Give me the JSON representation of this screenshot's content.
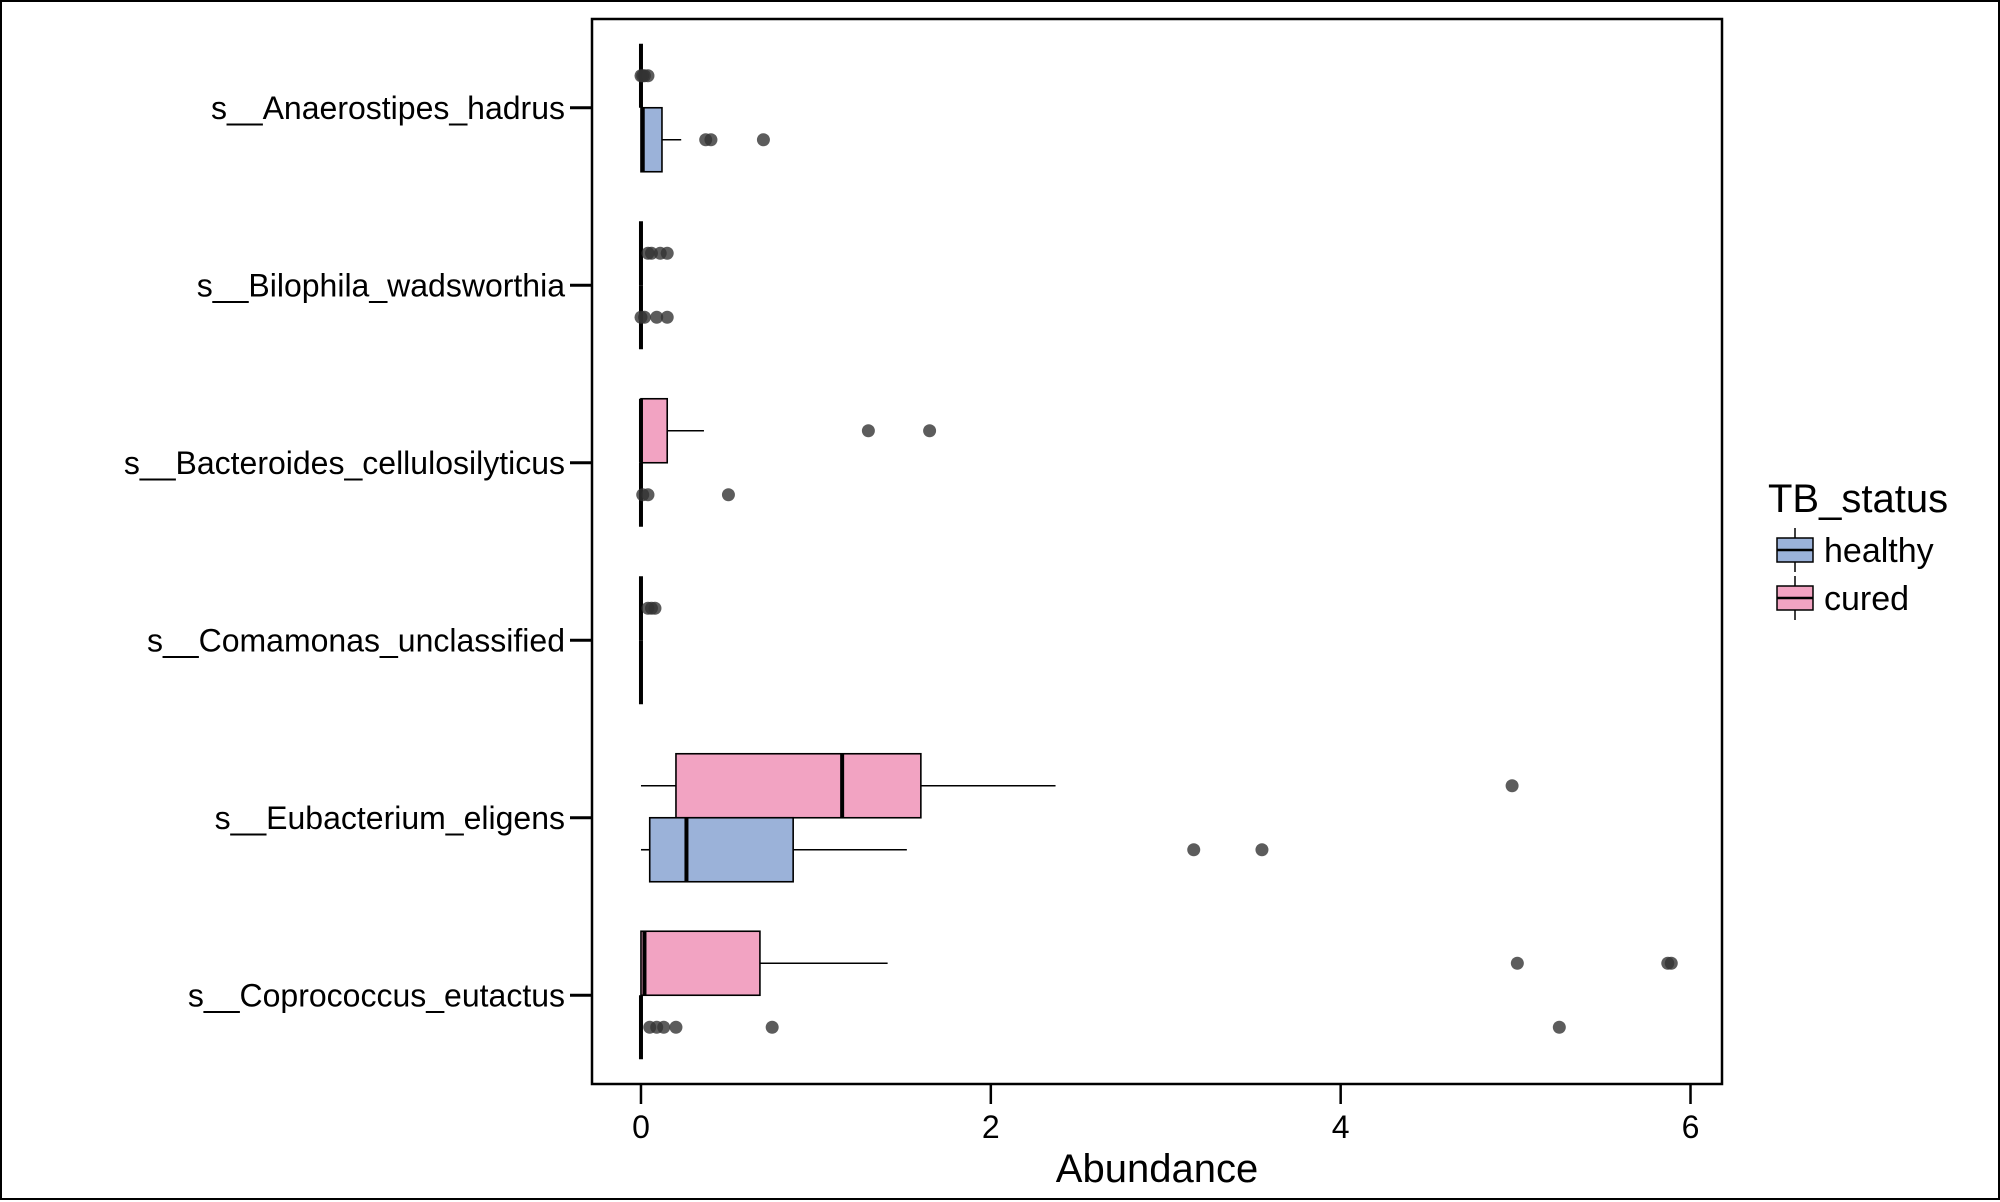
{
  "chart_data": {
    "type": "boxplot",
    "orientation": "horizontal",
    "title": "",
    "xlabel": "Abundance",
    "ylabel": "",
    "xlim": [
      -0.28,
      6.18
    ],
    "x_ticks": [
      0,
      2,
      4,
      6
    ],
    "grid": false,
    "legend": {
      "title": "TB_status",
      "position": "right",
      "entries": [
        {
          "name": "healthy",
          "color": "#9bb2d9"
        },
        {
          "name": "cured",
          "color": "#f2a3c2"
        }
      ]
    },
    "categories": [
      "s__Anaerostipes_hadrus",
      "s__Bilophila_wadsworthia",
      "s__Bacteroides_cellulosilyticus",
      "s__Comamonas_unclassified",
      "s__Eubacterium_eligens",
      "s__Coprococcus_eutactus"
    ],
    "series": [
      {
        "name": "cured",
        "color": "#f2a3c2",
        "boxes": [
          {
            "category": "s__Anaerostipes_hadrus",
            "whisker_low": 0,
            "q1": 0,
            "median": 0,
            "q3": 0,
            "whisker_high": 0,
            "outliers": [
              0,
              0.01,
              0.02,
              0.04
            ]
          },
          {
            "category": "s__Bilophila_wadsworthia",
            "whisker_low": 0,
            "q1": 0,
            "median": 0,
            "q3": 0,
            "whisker_high": 0,
            "outliers": [
              0.04,
              0.06,
              0.11,
              0.15
            ]
          },
          {
            "category": "s__Bacteroides_cellulosilyticus",
            "whisker_low": 0,
            "q1": 0,
            "median": 0,
            "q3": 0.15,
            "whisker_high": 0.36,
            "outliers": [
              1.3,
              1.65
            ]
          },
          {
            "category": "s__Comamonas_unclassified",
            "whisker_low": 0,
            "q1": 0,
            "median": 0,
            "q3": 0,
            "whisker_high": 0,
            "outliers": [
              0.04,
              0.06,
              0.08
            ]
          },
          {
            "category": "s__Eubacterium_eligens",
            "whisker_low": 0,
            "q1": 0.2,
            "median": 1.15,
            "q3": 1.6,
            "whisker_high": 2.37,
            "outliers": [
              4.98
            ]
          },
          {
            "category": "s__Coprococcus_eutactus",
            "whisker_low": 0,
            "q1": 0,
            "median": 0.02,
            "q3": 0.68,
            "whisker_high": 1.41,
            "outliers": [
              5.01,
              5.87,
              5.89
            ]
          }
        ]
      },
      {
        "name": "healthy",
        "color": "#9bb2d9",
        "boxes": [
          {
            "category": "s__Anaerostipes_hadrus",
            "whisker_low": 0,
            "q1": 0,
            "median": 0.01,
            "q3": 0.12,
            "whisker_high": 0.23,
            "outliers": [
              0.37,
              0.4,
              0.7
            ]
          },
          {
            "category": "s__Bilophila_wadsworthia",
            "whisker_low": 0,
            "q1": 0,
            "median": 0,
            "q3": 0,
            "whisker_high": 0,
            "outliers": [
              0,
              0.02,
              0.09,
              0.15
            ]
          },
          {
            "category": "s__Bacteroides_cellulosilyticus",
            "whisker_low": 0,
            "q1": 0,
            "median": 0,
            "q3": 0,
            "whisker_high": 0,
            "outliers": [
              0.01,
              0.04,
              0.5
            ]
          },
          {
            "category": "s__Comamonas_unclassified",
            "whisker_low": 0,
            "q1": 0,
            "median": 0,
            "q3": 0,
            "whisker_high": 0,
            "outliers": []
          },
          {
            "category": "s__Eubacterium_eligens",
            "whisker_low": 0,
            "q1": 0.05,
            "median": 0.26,
            "q3": 0.87,
            "whisker_high": 1.52,
            "outliers": [
              3.16,
              3.55
            ]
          },
          {
            "category": "s__Coprococcus_eutactus",
            "whisker_low": 0,
            "q1": 0,
            "median": 0,
            "q3": 0,
            "whisker_high": 0,
            "outliers": [
              0.05,
              0.09,
              0.13,
              0.2,
              0.75,
              5.25
            ]
          }
        ]
      }
    ]
  }
}
